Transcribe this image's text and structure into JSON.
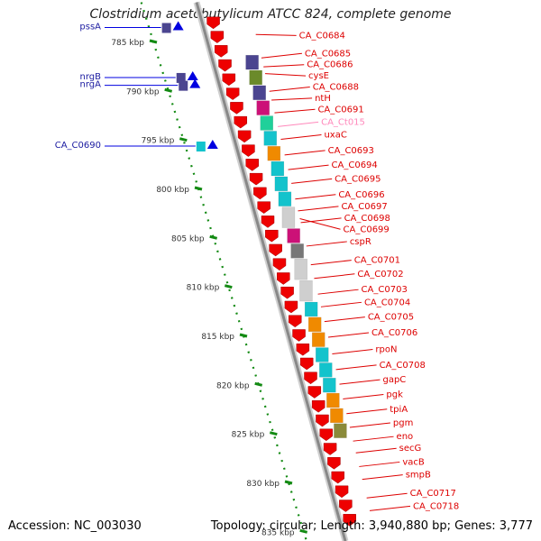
{
  "title": "Clostridium acetobutylicum ATCC 824, complete genome",
  "footer": {
    "accession": "Accession: NC_003030",
    "topology": "Topology: circular; Length: 3,940,880 bp; Genes: 3,777"
  },
  "colors": {
    "forward": "#0000e0",
    "forward_label": "#1a1aa0",
    "reverse": "#ee0000",
    "reverse_label": "#dd0000",
    "backbone": "#888888",
    "scale": "#138a13",
    "faint_label": "#ff88bb"
  },
  "scale_ticks": [
    {
      "kbp": 785,
      "label": "785 kbp"
    },
    {
      "kbp": 790,
      "label": "790 kbp"
    },
    {
      "kbp": 795,
      "label": "795 kbp"
    },
    {
      "kbp": 800,
      "label": "800 kbp"
    },
    {
      "kbp": 805,
      "label": "805 kbp"
    },
    {
      "kbp": 810,
      "label": "810 kbp"
    },
    {
      "kbp": 815,
      "label": "815 kbp"
    },
    {
      "kbp": 820,
      "label": "820 kbp"
    },
    {
      "kbp": 825,
      "label": "825 kbp"
    },
    {
      "kbp": 830,
      "label": "830 kbp"
    },
    {
      "kbp": 835,
      "label": "835 kbp"
    }
  ],
  "forward_genes": [
    {
      "name": "pssA",
      "kbp": 783.3
    },
    {
      "name": "nrgB",
      "kbp": 788.4
    },
    {
      "name": "nrgA",
      "kbp": 789.2
    },
    {
      "name": "CA_C0690",
      "kbp": 795.4
    }
  ],
  "reverse_genes": [
    {
      "name": "CA_C0684",
      "kbp": 784.1
    },
    {
      "name": "CA_C0685",
      "kbp": 786.5
    },
    {
      "name": "CA_C0686",
      "kbp": 787.4
    },
    {
      "name": "cysE",
      "kbp": 788.1
    },
    {
      "name": "CA_C0688",
      "kbp": 789.9
    },
    {
      "name": "ntH",
      "kbp": 790.8
    },
    {
      "name": "CA_C0691",
      "kbp": 792.1
    },
    {
      "name": "CA_Ct015",
      "kbp": 793.5,
      "faint": true
    },
    {
      "name": "uxaC",
      "kbp": 794.8
    },
    {
      "name": "CA_C0693",
      "kbp": 796.4
    },
    {
      "name": "CA_C0694",
      "kbp": 797.9
    },
    {
      "name": "CA_C0695",
      "kbp": 799.3
    },
    {
      "name": "CA_C0696",
      "kbp": 800.9
    },
    {
      "name": "CA_C0697",
      "kbp": 802.1
    },
    {
      "name": "CA_C0698",
      "kbp": 803.3
    },
    {
      "name": "CA_C0699",
      "kbp": 802.9
    },
    {
      "name": "cspR",
      "kbp": 805.7
    },
    {
      "name": "CA_C0701",
      "kbp": 807.6
    },
    {
      "name": "CA_C0702",
      "kbp": 809.0
    },
    {
      "name": "CA_C0703",
      "kbp": 810.6
    },
    {
      "name": "CA_C0704",
      "kbp": 811.9
    },
    {
      "name": "CA_C0705",
      "kbp": 813.4
    },
    {
      "name": "CA_C0706",
      "kbp": 815.0
    },
    {
      "name": "rpoN",
      "kbp": 816.7
    },
    {
      "name": "CA_C0708",
      "kbp": 818.3
    },
    {
      "name": "gapC",
      "kbp": 819.8
    },
    {
      "name": "pgk",
      "kbp": 821.3
    },
    {
      "name": "tpiA",
      "kbp": 822.8
    },
    {
      "name": "pgm",
      "kbp": 824.2
    },
    {
      "name": "eno",
      "kbp": 825.6
    },
    {
      "name": "secG",
      "kbp": 826.8
    },
    {
      "name": "vacB",
      "kbp": 828.2
    },
    {
      "name": "smpB",
      "kbp": 829.5
    },
    {
      "name": "CA_C0717",
      "kbp": 831.4
    },
    {
      "name": "CA_C0718",
      "kbp": 832.7
    }
  ]
}
